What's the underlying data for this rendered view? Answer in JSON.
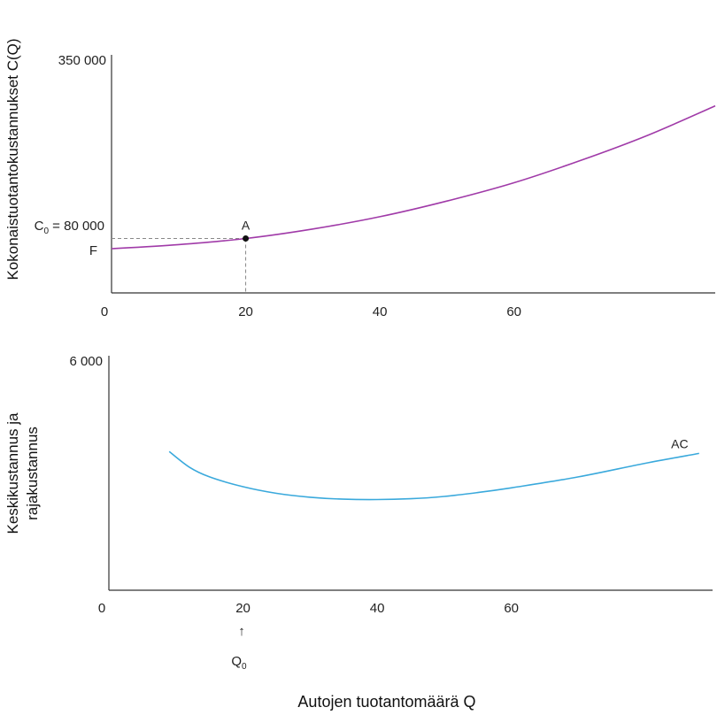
{
  "chart_data": [
    {
      "type": "line",
      "ylabel": "Kokonaistuotantokustannukset C(Q)",
      "x_ticks": [
        "0",
        "20",
        "40",
        "60"
      ],
      "y_max_label": "350 000",
      "ylim": [
        0,
        350000
      ],
      "xlim": [
        0,
        90
      ],
      "series": [
        {
          "name": "C(Q)",
          "color": "#a03aa8",
          "x": [
            0,
            10,
            20,
            30,
            40,
            50,
            60,
            70,
            80,
            90
          ],
          "y": [
            65000,
            71000,
            80000,
            94000,
            112000,
            135000,
            162000,
            195000,
            232000,
            275000
          ]
        }
      ],
      "point": {
        "label": "A",
        "x": 20,
        "y": 80000
      },
      "c0_label": "C",
      "c0_sub": "0",
      "c0_value": " = 80 000",
      "f_label": "F"
    },
    {
      "type": "line",
      "ylabel_lines": [
        "Keskikustannus ja",
        "rajakustannus"
      ],
      "x_ticks": [
        "0",
        "20",
        "40",
        "60"
      ],
      "y_max_label": "6 000",
      "ylim": [
        0,
        6000
      ],
      "xlim": [
        0,
        90
      ],
      "series": [
        {
          "name": "AC",
          "color": "#3aa9dc",
          "x": [
            9,
            12,
            15,
            20,
            25,
            30,
            35,
            40,
            45,
            50,
            55,
            60,
            70,
            80,
            88
          ],
          "y": [
            3550,
            3150,
            2900,
            2650,
            2480,
            2380,
            2330,
            2320,
            2340,
            2400,
            2500,
            2620,
            2900,
            3250,
            3500
          ]
        }
      ],
      "q0_label": "Q",
      "q0_sub": "0",
      "q0_arrow": "↑"
    }
  ],
  "xlabel": "Autojen tuotantomäärä Q"
}
